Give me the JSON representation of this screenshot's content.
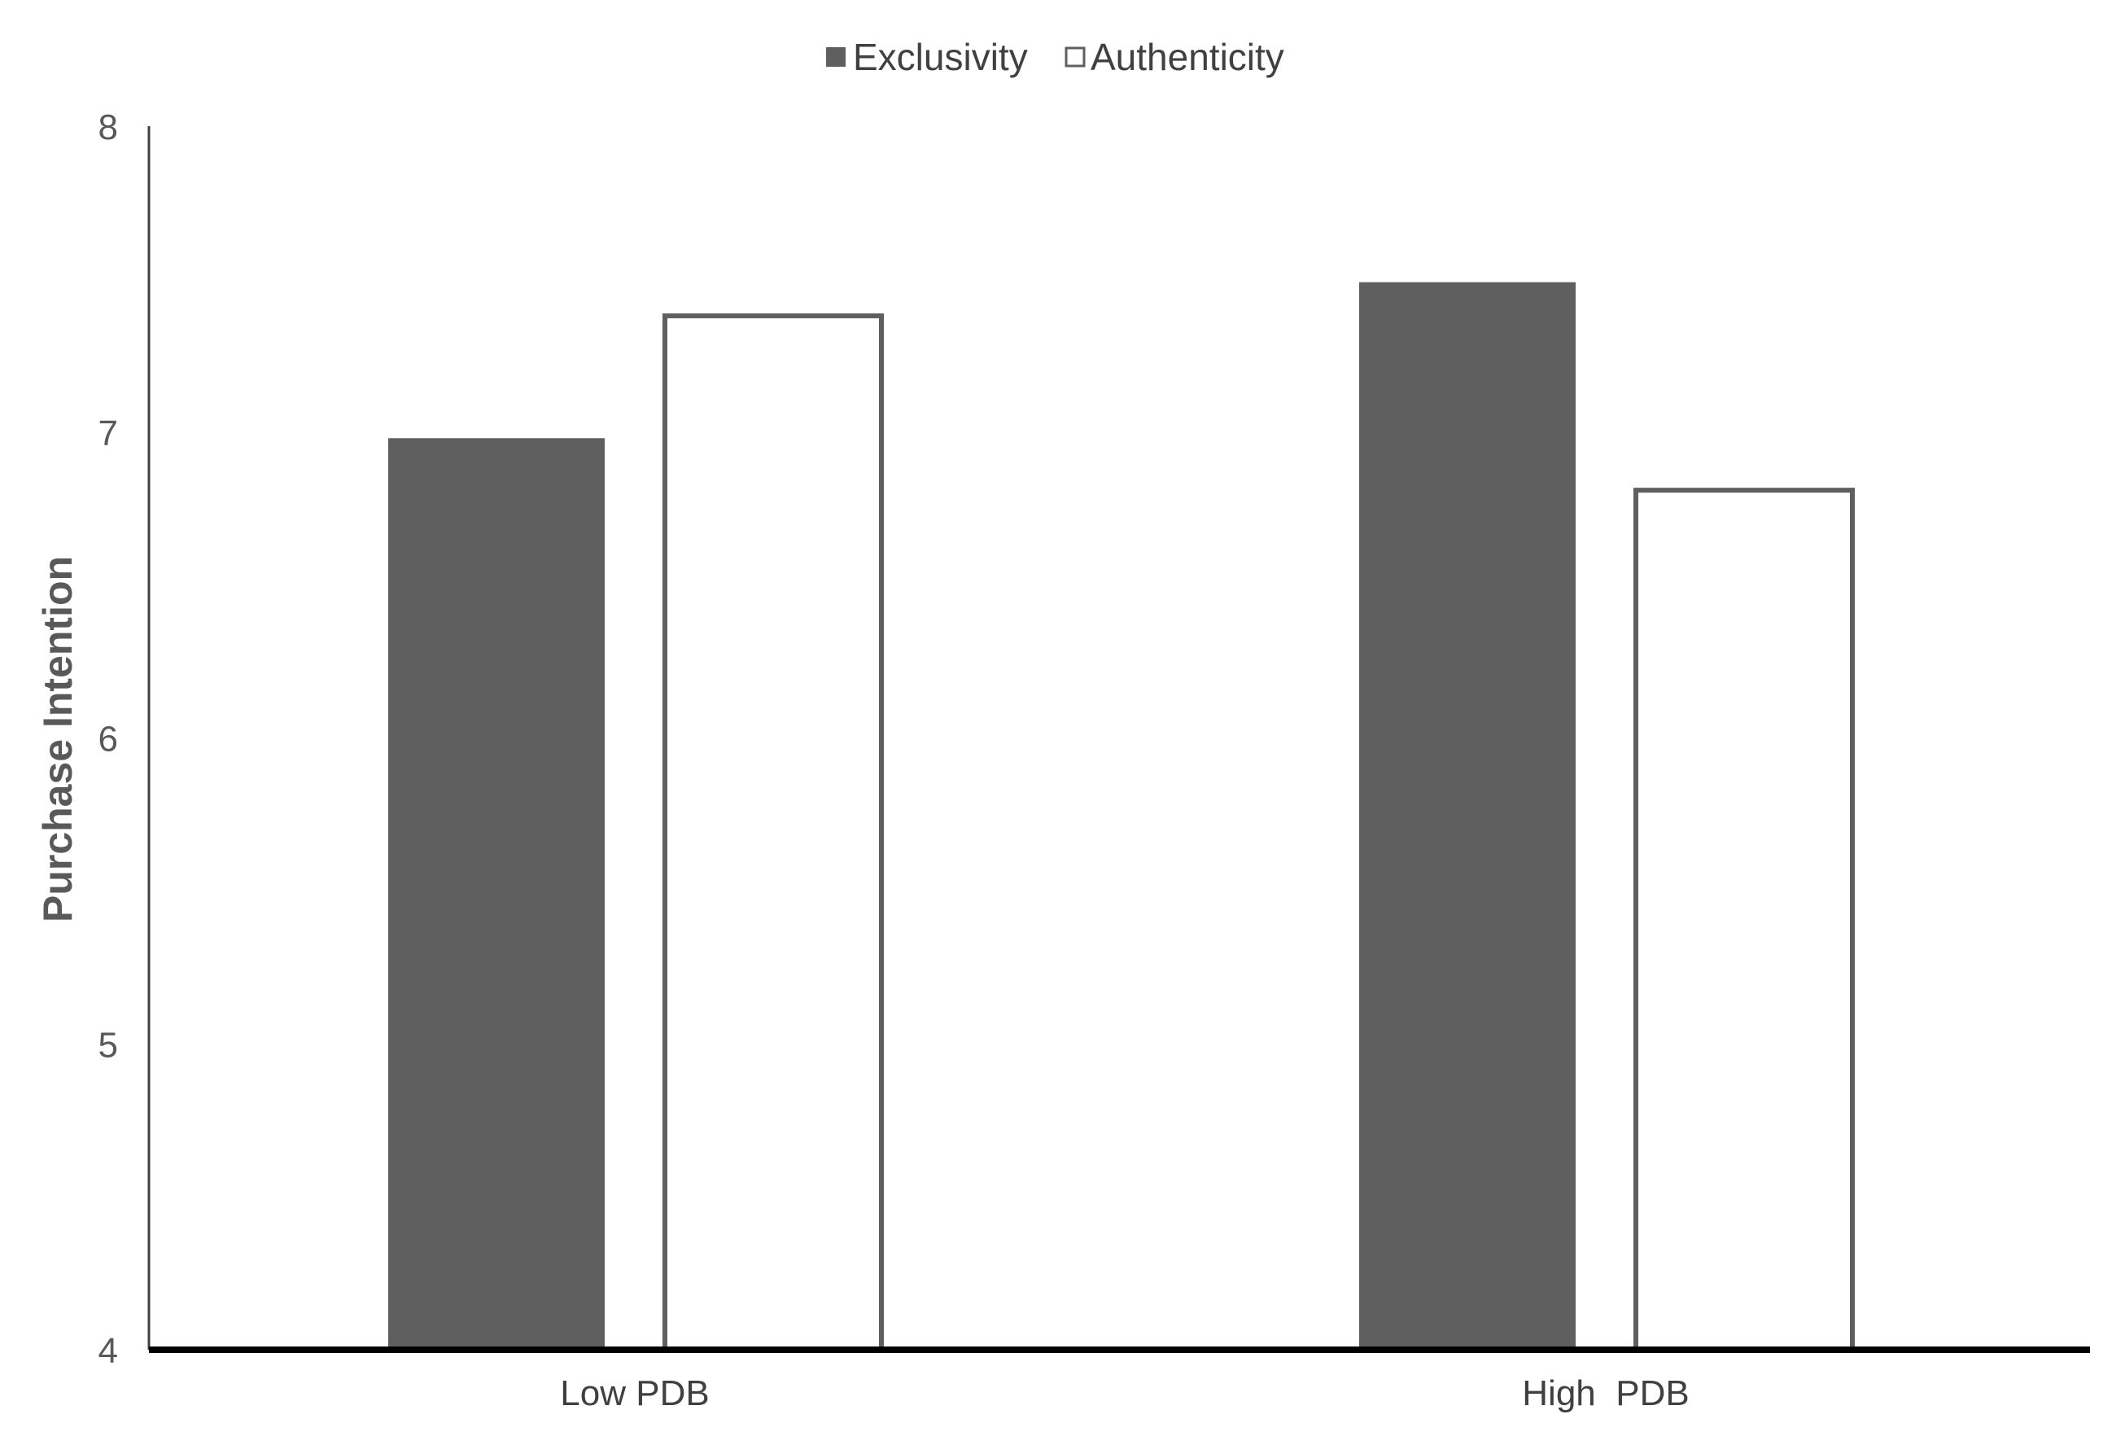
{
  "chart_data": {
    "type": "bar",
    "categories": [
      "Low PDB",
      "High  PDB"
    ],
    "series": [
      {
        "name": "Exclusivity",
        "values": [
          6.98,
          7.49
        ],
        "fill": "#5f5f5f",
        "stroke": "#5f5f5f"
      },
      {
        "name": "Authenticity",
        "values": [
          7.38,
          6.81
        ],
        "fill": "#ffffff",
        "stroke": "#5f5f5f"
      }
    ],
    "title": "",
    "xlabel": "",
    "ylabel": "Purchase Intention",
    "ylim": [
      4,
      8
    ],
    "yticks": [
      4,
      5,
      6,
      7,
      8
    ],
    "grid": false,
    "legend": "top-center"
  }
}
